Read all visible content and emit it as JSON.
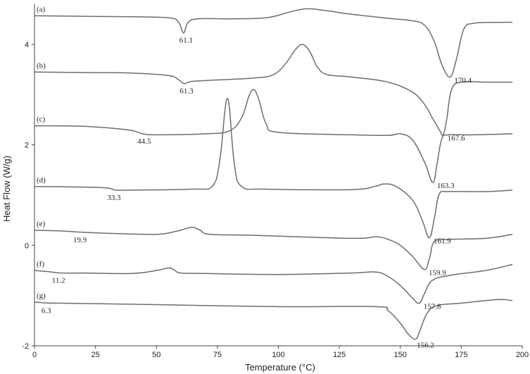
{
  "chart_data": {
    "type": "line",
    "xlabel": "Temperature (°C)",
    "ylabel": "Heat Flow (W/g)",
    "xlim": [
      0,
      200
    ],
    "ylim": [
      -2,
      4.8
    ],
    "x_ticks": [
      "0",
      "25",
      "50",
      "75",
      "100",
      "125",
      "150",
      "175",
      "200"
    ],
    "y_ticks": [
      "-2",
      "0",
      "2",
      "4"
    ],
    "grid": false,
    "series": [
      {
        "name": "(a)",
        "x": [
          0,
          20,
          40,
          55,
          59,
          61.1,
          63,
          67,
          80,
          95,
          105,
          112,
          120,
          130,
          145,
          155,
          160,
          164,
          167,
          170.4,
          173,
          176,
          180,
          190,
          196
        ],
        "y": [
          4.57,
          4.56,
          4.55,
          4.53,
          4.45,
          4.23,
          4.44,
          4.51,
          4.51,
          4.53,
          4.65,
          4.71,
          4.67,
          4.6,
          4.52,
          4.47,
          4.38,
          4.05,
          3.6,
          3.35,
          3.7,
          4.3,
          4.42,
          4.44,
          4.44
        ]
      },
      {
        "name": "(b)",
        "x": [
          0,
          20,
          40,
          55,
          59,
          61.3,
          64,
          70,
          90,
          98,
          103,
          107,
          110,
          113,
          116,
          120,
          130,
          145,
          155,
          160,
          163,
          166,
          167.6,
          169,
          171,
          175,
          185,
          196
        ],
        "y": [
          3.45,
          3.44,
          3.43,
          3.38,
          3.3,
          3.22,
          3.26,
          3.28,
          3.33,
          3.4,
          3.62,
          3.9,
          4.0,
          3.85,
          3.55,
          3.4,
          3.35,
          3.25,
          3.05,
          2.8,
          2.55,
          2.3,
          2.2,
          2.5,
          3.1,
          3.25,
          3.25,
          3.25
        ]
      },
      {
        "name": "(c)",
        "x": [
          0,
          20,
          38,
          44.5,
          50,
          70,
          80,
          85,
          88,
          90,
          92,
          95,
          100,
          130,
          145,
          150,
          155,
          160,
          163.3,
          165,
          167,
          170,
          180,
          196
        ],
        "y": [
          2.38,
          2.37,
          2.3,
          2.22,
          2.2,
          2.22,
          2.28,
          2.55,
          2.98,
          3.1,
          2.9,
          2.42,
          2.25,
          2.2,
          2.19,
          2.22,
          2.1,
          1.65,
          1.25,
          1.6,
          2.12,
          2.2,
          2.2,
          2.22
        ]
      },
      {
        "name": "(d)",
        "x": [
          0,
          20,
          30,
          33.3,
          40,
          65,
          73,
          76,
          78,
          79,
          80,
          82,
          85,
          95,
          130,
          140,
          143,
          148,
          155,
          159,
          161.9,
          164,
          166,
          170,
          185,
          196
        ],
        "y": [
          1.17,
          1.16,
          1.14,
          1.1,
          1.1,
          1.12,
          1.18,
          1.7,
          2.65,
          2.92,
          2.7,
          1.6,
          1.17,
          1.12,
          1.11,
          1.18,
          1.22,
          1.18,
          0.9,
          0.5,
          0.15,
          0.55,
          1.02,
          1.07,
          1.07,
          1.1
        ]
      },
      {
        "name": "(e)",
        "x": [
          0,
          10,
          19.9,
          30,
          50,
          58,
          62,
          65,
          68,
          72,
          90,
          130,
          140,
          145,
          150,
          155,
          159.9,
          162,
          164,
          170,
          185,
          196
        ],
        "y": [
          0.3,
          0.29,
          0.26,
          0.24,
          0.22,
          0.28,
          0.33,
          0.36,
          0.3,
          0.22,
          0.2,
          0.14,
          0.17,
          0.12,
          0.0,
          -0.22,
          -0.48,
          -0.25,
          0.08,
          0.12,
          0.14,
          0.22
        ]
      },
      {
        "name": "(f)",
        "x": [
          0,
          5,
          11.2,
          20,
          40,
          50,
          55,
          57,
          60,
          70,
          100,
          130,
          140,
          145,
          150,
          155,
          157.8,
          160,
          163,
          170,
          185,
          196
        ],
        "y": [
          -0.5,
          -0.52,
          -0.55,
          -0.55,
          -0.56,
          -0.5,
          -0.45,
          -0.48,
          -0.55,
          -0.56,
          -0.58,
          -0.55,
          -0.53,
          -0.62,
          -0.8,
          -1.05,
          -1.15,
          -0.95,
          -0.7,
          -0.6,
          -0.5,
          -0.38
        ]
      },
      {
        "name": "(g)",
        "x": [
          0,
          3,
          6.3,
          10,
          50,
          100,
          140,
          145,
          150,
          153,
          156.2,
          158,
          161,
          165,
          175,
          190,
          196
        ],
        "y": [
          -1.13,
          -1.14,
          -1.15,
          -1.15,
          -1.18,
          -1.22,
          -1.22,
          -1.3,
          -1.55,
          -1.75,
          -1.87,
          -1.7,
          -1.35,
          -1.2,
          -1.15,
          -1.08,
          -1.1
        ]
      }
    ],
    "annotations": [
      "61.1",
      "170.4",
      "61.3",
      "167.6",
      "44.5",
      "163.3",
      "33.3",
      "161.9",
      "19.9",
      "159.9",
      "11.2",
      "157.8",
      "6.3",
      "156.2"
    ]
  }
}
